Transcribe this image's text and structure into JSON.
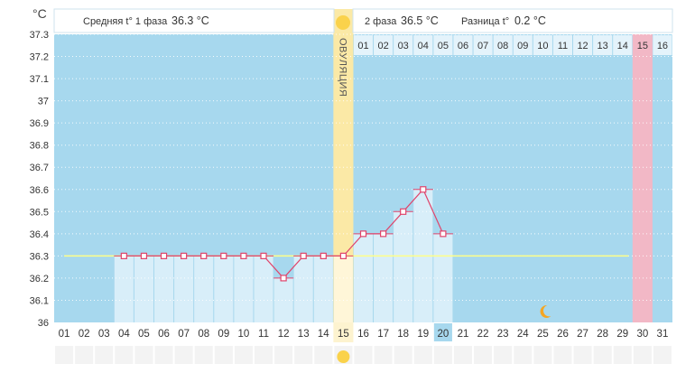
{
  "header": {
    "unit": "°C",
    "phase1_label": "Средняя t° 1 фаза",
    "phase1_value": "36.3 °C",
    "phase2_label": "2 фаза",
    "phase2_value": "36.5 °C",
    "diff_label": "Разница t°",
    "diff_value": "0.2 °C"
  },
  "ovulation_label": "ОВУЛЯЦИЯ",
  "colors": {
    "background": "#a7d8ee",
    "bar": "#d8eef9",
    "ovulation": "#fbe9a6",
    "ovulation_dim": "#fdf3cf",
    "pink": "#f2b8c6",
    "line": "#e0446b",
    "coverline": "#ffff88",
    "sun": "#fad24b",
    "moon": "#f5a623",
    "today_box": "#a7d8ee"
  },
  "chart_data": {
    "type": "line",
    "ylabel": "°C",
    "ylim": [
      36.0,
      37.3
    ],
    "yticks": [
      "37.3",
      "37.2",
      "37.1",
      "37",
      "36.9",
      "36.8",
      "36.7",
      "36.6",
      "36.5",
      "36.4",
      "36.3",
      "36.2",
      "36.1",
      "36"
    ],
    "x_days": [
      "01",
      "02",
      "03",
      "04",
      "05",
      "06",
      "07",
      "08",
      "09",
      "10",
      "11",
      "12",
      "13",
      "14",
      "15",
      "16",
      "17",
      "18",
      "19",
      "20",
      "21",
      "22",
      "23",
      "24",
      "25",
      "26",
      "27",
      "28",
      "29",
      "30",
      "31"
    ],
    "phase2_days": [
      "01",
      "02",
      "03",
      "04",
      "05",
      "06",
      "07",
      "08",
      "09",
      "10",
      "11",
      "12",
      "13",
      "14",
      "15",
      "16"
    ],
    "series": [
      {
        "days": [
          "04",
          "05",
          "06",
          "07",
          "08",
          "09",
          "10",
          "11",
          "12",
          "13",
          "14",
          "15",
          "16",
          "17",
          "18",
          "19",
          "20"
        ],
        "values": [
          36.3,
          36.3,
          36.3,
          36.3,
          36.3,
          36.3,
          36.3,
          36.3,
          36.2,
          36.3,
          36.3,
          36.3,
          36.4,
          36.4,
          36.5,
          36.6,
          36.4
        ]
      }
    ],
    "coverline": 36.3,
    "ovulation_day": "15",
    "highlighted_day": "30",
    "today": "20",
    "moon_day": "25",
    "grid": true
  }
}
